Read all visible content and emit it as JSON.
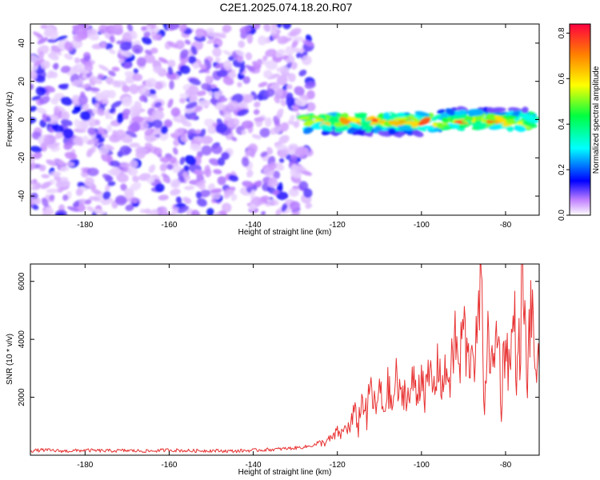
{
  "title": "C2E1.2025.074.18.20.R07",
  "chart_data": [
    {
      "type": "heatmap",
      "xlabel": "Height of straight line (km)",
      "ylabel": "Frequency (Hz)",
      "xlim": [
        -193,
        -72
      ],
      "ylim": [
        -50,
        50
      ],
      "xticks": [
        -180,
        -160,
        -140,
        -120,
        -100,
        -80
      ],
      "yticks": [
        -40,
        -20,
        0,
        20,
        40
      ],
      "colorbar": {
        "label": "Normalized spectral amplitude",
        "range": [
          0.0,
          0.84
        ],
        "ticks": [
          0.0,
          0.2,
          0.4,
          0.6,
          0.8
        ]
      },
      "regions": [
        {
          "description": "noise",
          "x_range": [
            -193,
            -126
          ],
          "y_range": [
            -50,
            50
          ],
          "amplitude_range": [
            0.0,
            0.15
          ]
        },
        {
          "description": "signal band",
          "x_range": [
            -128,
            -73
          ],
          "y_range": [
            -7,
            5
          ],
          "amplitude_range": [
            0.1,
            0.84
          ]
        }
      ],
      "grid": false
    },
    {
      "type": "line",
      "xlabel": "Height of straight line (km)",
      "ylabel": "SNR (10 * v/v)",
      "xlim": [
        -193,
        -72
      ],
      "ylim": [
        0,
        6600
      ],
      "xticks": [
        -180,
        -160,
        -140,
        -120,
        -100,
        -80
      ],
      "yticks": [
        2000,
        4000,
        6000
      ],
      "color": "#e83232",
      "series": [
        {
          "x": [
            -193,
            -190,
            -185,
            -180,
            -175,
            -170,
            -165,
            -160,
            -155,
            -150,
            -145,
            -140,
            -135,
            -130,
            -127,
            -125,
            -123,
            -121,
            -120,
            -119,
            -118,
            -117,
            -116,
            -115,
            -114,
            -113,
            -112,
            -111,
            -110,
            -109,
            -108,
            -107,
            -106,
            -105,
            -104,
            -103,
            -102,
            -101,
            -100,
            -99,
            -98,
            -97,
            -96,
            -95,
            -94,
            -93,
            -92,
            -91,
            -90,
            -89,
            -88,
            -87,
            -86,
            -85,
            -84,
            -83,
            -82,
            -81,
            -80,
            -79,
            -78,
            -77,
            -76,
            -75,
            -74,
            -73,
            -72
          ],
          "y": [
            150,
            180,
            140,
            170,
            150,
            160,
            140,
            180,
            150,
            160,
            140,
            170,
            200,
            250,
            300,
            380,
            450,
            600,
            800,
            700,
            1000,
            900,
            1500,
            1100,
            2000,
            1300,
            2500,
            1400,
            2300,
            1500,
            2400,
            1600,
            2700,
            1800,
            2300,
            1900,
            2600,
            2000,
            3000,
            2100,
            2800,
            2200,
            3200,
            2400,
            2900,
            2600,
            4200,
            2800,
            4700,
            3000,
            3900,
            3200,
            5900,
            2400,
            4200,
            2600,
            4600,
            2200,
            4100,
            2800,
            5000,
            2300,
            6550,
            2500,
            5100,
            3200,
            3000
          ]
        }
      ],
      "grid": false
    }
  ]
}
